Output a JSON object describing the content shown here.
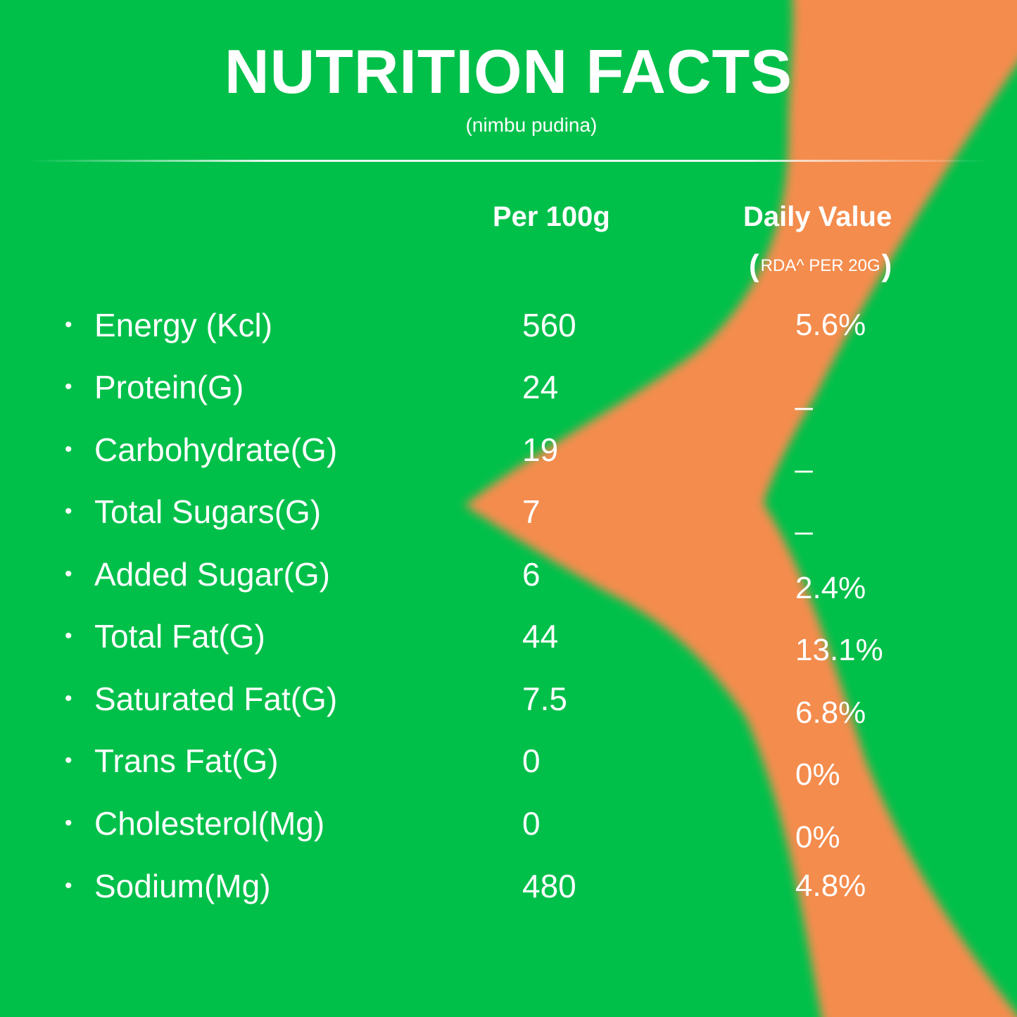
{
  "colors": {
    "green": "#00c04a",
    "orange": "#f48c4e",
    "text": "#ffffff"
  },
  "header": {
    "title": "NUTRITION FACTS",
    "subtitle": "(nimbu pudina)"
  },
  "columns": {
    "per_100g": "Per 100g",
    "daily_value": "Daily Value",
    "rda_open": "(",
    "rda_note": "RDA^ PER 20G",
    "rda_close": ")"
  },
  "rows": [
    {
      "bullet": "•",
      "label": "Energy (Kcl)",
      "per_100g": "560",
      "daily_value": "5.6%"
    },
    {
      "bullet": "•",
      "label": "Protein(G)",
      "per_100g": "24",
      "daily_value": "_"
    },
    {
      "bullet": "•",
      "label": "Carbohydrate(G)",
      "per_100g": "19",
      "daily_value": "_"
    },
    {
      "bullet": "•",
      "label": "Total Sugars(G)",
      "per_100g": "7",
      "daily_value": "_"
    },
    {
      "bullet": "•",
      "label": "Added Sugar(G)",
      "per_100g": "6",
      "daily_value": "2.4%"
    },
    {
      "bullet": "•",
      "label": "Total Fat(G)",
      "per_100g": "44",
      "daily_value": "13.1%"
    },
    {
      "bullet": "•",
      "label": "Saturated Fat(G)",
      "per_100g": "7.5",
      "daily_value": "6.8%"
    },
    {
      "bullet": "•",
      "label": "Trans Fat(G)",
      "per_100g": "0",
      "daily_value": "0%"
    },
    {
      "bullet": "•",
      "label": "Cholesterol(Mg)",
      "per_100g": "0",
      "daily_value": "0%"
    },
    {
      "bullet": "•",
      "label": "Sodium(Mg)",
      "per_100g": "480",
      "daily_value": "4.8%"
    }
  ]
}
